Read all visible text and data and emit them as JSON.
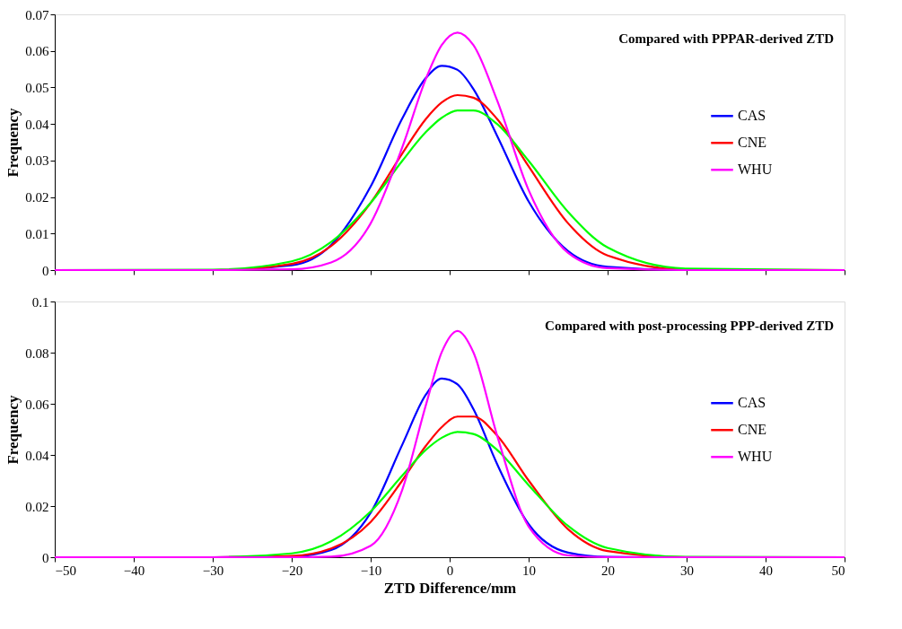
{
  "chart_data": [
    {
      "type": "line",
      "ylabel": "Frequency",
      "xlim": [
        -50,
        50
      ],
      "xticks": [
        -50,
        -40,
        -30,
        -20,
        -10,
        0,
        10,
        20,
        30,
        40,
        50
      ],
      "ylim": [
        0,
        0.07
      ],
      "yticks": [
        0,
        0.01,
        0.02,
        0.03,
        0.04,
        0.05,
        0.06,
        0.07
      ],
      "grid": false,
      "legend": "right",
      "tick_labels": "y",
      "line_style": "solid",
      "marker": "none",
      "annotations": [
        "Compared with PPPAR-derived ZTD"
      ],
      "x": [
        -50,
        -30,
        -20,
        -15,
        -10,
        -6,
        -3,
        -1,
        1,
        3,
        6,
        10,
        15,
        20,
        30,
        50
      ],
      "series": [
        {
          "name": "CAS",
          "color": "#0000ff",
          "values": [
            0,
            0,
            0.0013,
            0.0069,
            0.0229,
            0.0415,
            0.0526,
            0.0559,
            0.0548,
            0.0496,
            0.0368,
            0.0188,
            0.0052,
            0.0009,
            0,
            0
          ]
        },
        {
          "name": "CNE",
          "color": "#ff0000",
          "values": [
            0,
            0,
            0.0017,
            0.0066,
            0.0184,
            0.0319,
            0.0414,
            0.0459,
            0.0479,
            0.0472,
            0.0414,
            0.0284,
            0.0128,
            0.004,
            0.0001,
            0
          ]
        },
        {
          "color": "#00ff00",
          "values": [
            0,
            0.0001,
            0.0024,
            0.0077,
            0.0184,
            0.0299,
            0.0378,
            0.0417,
            0.0437,
            0.0437,
            0.04,
            0.0299,
            0.0159,
            0.0062,
            0.0004,
            0
          ]
        },
        {
          "name": "WHU",
          "color": "#ff00ff",
          "values": [
            0,
            0,
            0.0002,
            0.0021,
            0.0128,
            0.0336,
            0.0524,
            0.0616,
            0.065,
            0.0616,
            0.0465,
            0.0219,
            0.0047,
            0.0005,
            0,
            0
          ]
        }
      ]
    },
    {
      "type": "line",
      "xlabel": "ZTD Difference/mm",
      "ylabel": "Frequency",
      "xlim": [
        -50,
        50
      ],
      "xticks": [
        -50,
        -40,
        -30,
        -20,
        -10,
        0,
        10,
        20,
        30,
        40,
        50
      ],
      "ylim": [
        0,
        0.1
      ],
      "yticks": [
        0,
        0.02,
        0.04,
        0.06,
        0.08,
        0.1
      ],
      "grid": false,
      "legend": "right",
      "line_style": "solid",
      "marker": "none",
      "annotations": [
        "Compared with post-processing PPP-derived ZTD"
      ],
      "x": [
        -50,
        -30,
        -20,
        -15,
        -10,
        -6,
        -3,
        -1,
        1,
        3,
        6,
        10,
        15,
        20,
        30,
        50
      ],
      "series": [
        {
          "name": "CAS",
          "color": "#0000ff",
          "values": [
            0,
            0,
            0.0002,
            0.0028,
            0.0174,
            0.044,
            0.0636,
            0.0699,
            0.0676,
            0.058,
            0.0365,
            0.0129,
            0.0018,
            0.0001,
            0,
            0
          ]
        },
        {
          "name": "CNE",
          "color": "#ff0000",
          "values": [
            0,
            0,
            0.0005,
            0.0034,
            0.0138,
            0.03,
            0.0436,
            0.0509,
            0.055,
            0.055,
            0.0476,
            0.03,
            0.0109,
            0.0024,
            0,
            0
          ]
        },
        {
          "color": "#00ff00",
          "values": [
            0,
            0,
            0.0015,
            0.0062,
            0.0179,
            0.0319,
            0.042,
            0.0467,
            0.049,
            0.0482,
            0.042,
            0.0282,
            0.0122,
            0.0036,
            0.0001,
            0
          ]
        },
        {
          "name": "WHU",
          "color": "#ff00ff",
          "values": [
            0,
            0,
            0,
            0.0002,
            0.0045,
            0.0264,
            0.0596,
            0.0802,
            0.0885,
            0.0802,
            0.0477,
            0.012,
            0.0007,
            0,
            0,
            0
          ]
        }
      ]
    }
  ]
}
